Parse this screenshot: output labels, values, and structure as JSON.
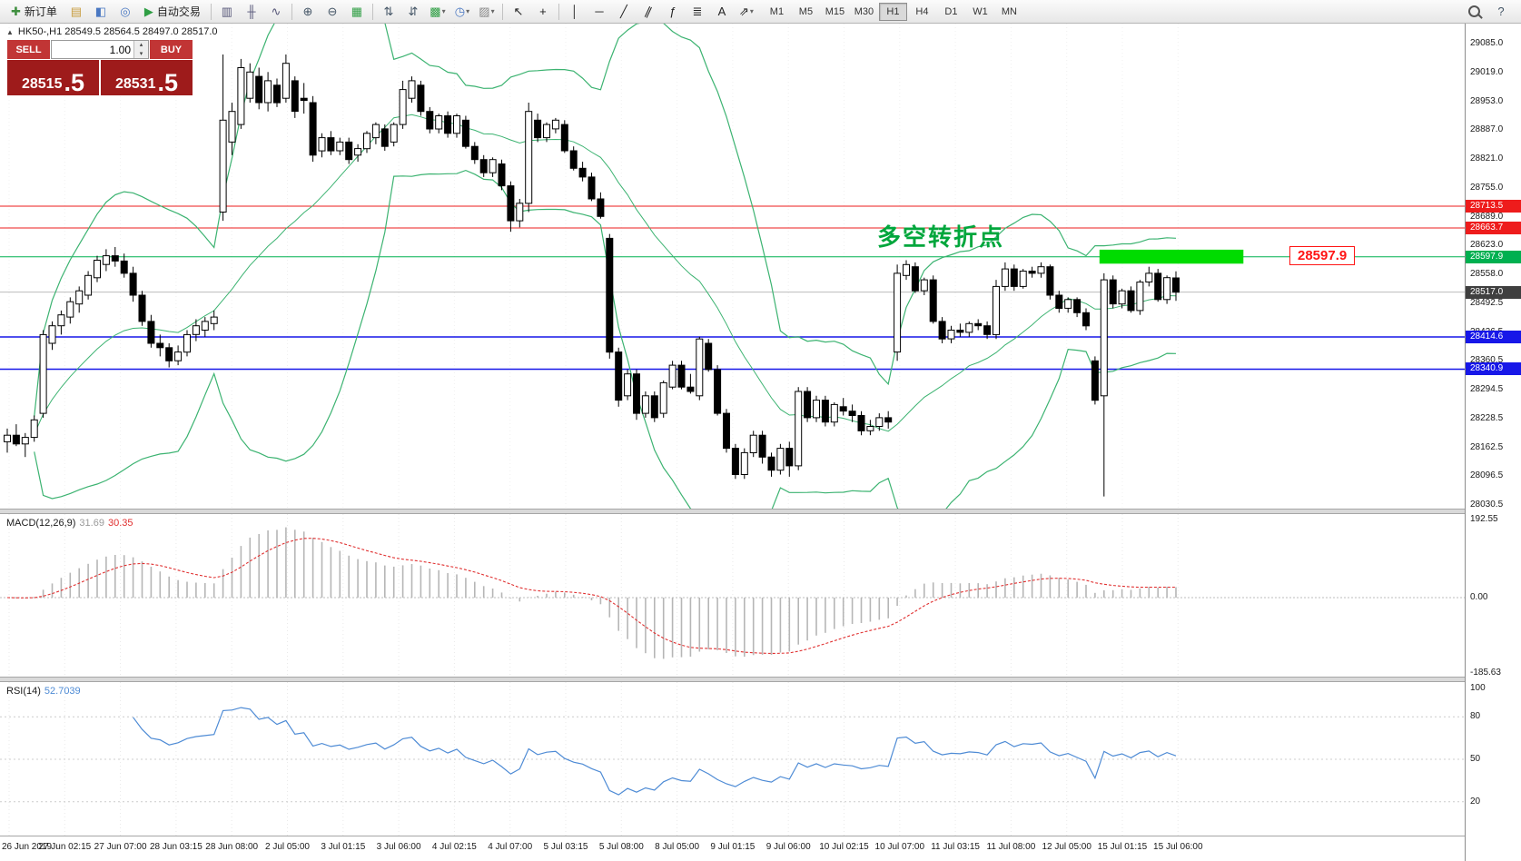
{
  "toolbar": {
    "items": [
      {
        "name": "new-order-button",
        "label": "新订单",
        "glyph": "✚",
        "glyph_color": "#3f8f3f"
      },
      {
        "name": "market-watch-icon",
        "glyph": "▤",
        "glyph_color": "#c79a3a"
      },
      {
        "name": "data-window-icon",
        "glyph": "◧",
        "glyph_color": "#4a78c2"
      },
      {
        "name": "navigator-icon",
        "glyph": "◎",
        "glyph_color": "#4a78c2"
      },
      {
        "name": "autotrading-button",
        "label": "自动交易",
        "glyph": "▶",
        "glyph_color": "#2f9e44"
      },
      {
        "sep": true
      },
      {
        "name": "bar-chart-icon",
        "glyph": "▥",
        "glyph_color": "#555577"
      },
      {
        "name": "candlestick-chart-icon",
        "glyph": "╫",
        "glyph_color": "#555577"
      },
      {
        "name": "line-chart-icon",
        "glyph": "∿",
        "glyph_color": "#555577"
      },
      {
        "sep": true
      },
      {
        "name": "zoom-in-icon",
        "glyph": "⊕",
        "glyph_color": "#445566"
      },
      {
        "name": "zoom-out-icon",
        "glyph": "⊖",
        "glyph_color": "#445566"
      },
      {
        "name": "tile-windows-icon",
        "glyph": "▦",
        "glyph_color": "#2f9e44"
      },
      {
        "sep": true
      },
      {
        "name": "sort-ascending-icon",
        "glyph": "⇅",
        "glyph_color": "#445566"
      },
      {
        "name": "sort-descending-icon",
        "glyph": "⇵",
        "glyph_color": "#445566"
      },
      {
        "name": "new-chart-dropdown",
        "glyph": "▩",
        "glyph_color": "#2f9e44",
        "caret": true
      },
      {
        "name": "period-dropdown",
        "glyph": "◷",
        "glyph_color": "#4a78c2",
        "caret": true
      },
      {
        "name": "template-dropdown",
        "glyph": "▨",
        "glyph_color": "#888888",
        "caret": true
      },
      {
        "sep": true
      },
      {
        "name": "cursor-icon",
        "glyph": "↖",
        "glyph_color": "#222222"
      },
      {
        "name": "crosshair-icon",
        "glyph": "+",
        "glyph_color": "#222222"
      },
      {
        "sep": true
      },
      {
        "name": "vertical-line-icon",
        "glyph": "│",
        "glyph_color": "#222222"
      },
      {
        "name": "horizontal-line-icon",
        "glyph": "─",
        "glyph_color": "#222222"
      },
      {
        "name": "trendline-icon",
        "glyph": "╱",
        "glyph_color": "#222222"
      },
      {
        "name": "channel-icon",
        "glyph": "∥",
        "glyph_color": "#222222",
        "rot": 25
      },
      {
        "name": "fibonacci-icon",
        "glyph": "ƒ",
        "glyph_color": "#222222"
      },
      {
        "name": "shapes-icon",
        "glyph": "≣",
        "glyph_color": "#222222"
      },
      {
        "name": "text-label-icon",
        "glyph": "A",
        "glyph_color": "#222222"
      },
      {
        "name": "arrows-icon",
        "glyph": "⇗",
        "glyph_color": "#222222",
        "caret": true
      }
    ],
    "timeframes": [
      {
        "label": "M1"
      },
      {
        "label": "M5"
      },
      {
        "label": "M15"
      },
      {
        "label": "M30"
      },
      {
        "label": "H1",
        "active": true
      },
      {
        "label": "H4"
      },
      {
        "label": "D1"
      },
      {
        "label": "W1"
      },
      {
        "label": "MN"
      }
    ],
    "right_items": [
      {
        "name": "search-icon",
        "type": "magnifier"
      },
      {
        "name": "help-icon",
        "glyph": "?"
      }
    ]
  },
  "chart_header": {
    "collapse_glyph": "▲",
    "text": "HK50-,H1 28549.5 28564.5 28497.0 28517.0"
  },
  "trade_panel": {
    "sell_label": "SELL",
    "buy_label": "BUY",
    "volume": "1.00",
    "spin_up_glyph": "▴",
    "spin_down_glyph": "▾",
    "sell_price_main": "28515",
    "sell_price_frac": ".5",
    "buy_price_main": "28531",
    "buy_price_frac": ".5",
    "button_color": "#c13535",
    "price_bg_color": "#9e1b1b"
  },
  "chart_data": {
    "type": "candlestick",
    "symbol": "HK50-",
    "timeframe": "H1",
    "last_ohlc": {
      "open": 28549.5,
      "high": 28564.5,
      "low": 28497.0,
      "close": 28517.0
    },
    "y_axis_labels": [
      "29085.0",
      "29019.0",
      "28953.0",
      "28887.0",
      "28821.0",
      "28755.0",
      "28689.0",
      "28623.0",
      "28558.0",
      "28492.5",
      "28426.5",
      "28360.5",
      "28294.5",
      "28228.5",
      "28162.5",
      "28096.5",
      "28030.5"
    ],
    "x_axis_labels": [
      "26 Jun 2019",
      "27 Jun 02:15",
      "27 Jun 07:00",
      "28 Jun 03:15",
      "28 Jun 08:00",
      "2 Jul 05:00",
      "3 Jul 01:15",
      "3 Jul 06:00",
      "4 Jul 02:15",
      "4 Jul 07:00",
      "5 Jul 03:15",
      "5 Jul 08:00",
      "8 Jul 05:00",
      "9 Jul 01:15",
      "9 Jul 06:00",
      "10 Jul 02:15",
      "10 Jul 07:00",
      "11 Jul 03:15",
      "11 Jul 08:00",
      "12 Jul 05:00",
      "15 Jul 01:15",
      "15 Jul 06:00"
    ],
    "candles_ohlc": [
      [
        28175,
        28205,
        28150,
        28190
      ],
      [
        28190,
        28215,
        28165,
        28170
      ],
      [
        28170,
        28195,
        28140,
        28185
      ],
      [
        28185,
        28235,
        28175,
        28225
      ],
      [
        28240,
        28430,
        28230,
        28420
      ],
      [
        28400,
        28450,
        28385,
        28440
      ],
      [
        28440,
        28475,
        28420,
        28465
      ],
      [
        28460,
        28505,
        28445,
        28495
      ],
      [
        28490,
        28530,
        28470,
        28520
      ],
      [
        28510,
        28565,
        28500,
        28555
      ],
      [
        28550,
        28600,
        28540,
        28590
      ],
      [
        28580,
        28615,
        28565,
        28600
      ],
      [
        28600,
        28620,
        28575,
        28588
      ],
      [
        28588,
        28605,
        28550,
        28560
      ],
      [
        28560,
        28575,
        28495,
        28510
      ],
      [
        28510,
        28520,
        28440,
        28450
      ],
      [
        28450,
        28465,
        28390,
        28400
      ],
      [
        28400,
        28420,
        28370,
        28390
      ],
      [
        28390,
        28400,
        28345,
        28360
      ],
      [
        28360,
        28395,
        28350,
        28380
      ],
      [
        28380,
        28430,
        28370,
        28420
      ],
      [
        28420,
        28455,
        28405,
        28440
      ],
      [
        28430,
        28460,
        28415,
        28450
      ],
      [
        28445,
        28475,
        28430,
        28460
      ],
      [
        28700,
        29060,
        28680,
        28910
      ],
      [
        28860,
        28950,
        28830,
        28930
      ],
      [
        28900,
        29050,
        28890,
        29030
      ],
      [
        28960,
        29040,
        28950,
        29020
      ],
      [
        29010,
        29030,
        28935,
        28950
      ],
      [
        28950,
        29020,
        28930,
        29000
      ],
      [
        28990,
        29005,
        28940,
        28950
      ],
      [
        28960,
        29060,
        28950,
        29040
      ],
      [
        29000,
        29010,
        28915,
        28930
      ],
      [
        28960,
        28995,
        28925,
        28955
      ],
      [
        28950,
        28965,
        28815,
        28830
      ],
      [
        28840,
        28880,
        28825,
        28870
      ],
      [
        28870,
        28885,
        28830,
        28840
      ],
      [
        28840,
        28870,
        28830,
        28860
      ],
      [
        28860,
        28870,
        28810,
        28820
      ],
      [
        28830,
        28855,
        28815,
        28845
      ],
      [
        28845,
        28885,
        28835,
        28880
      ],
      [
        28870,
        28905,
        28855,
        28900
      ],
      [
        28890,
        28900,
        28840,
        28850
      ],
      [
        28860,
        28905,
        28850,
        28900
      ],
      [
        28900,
        29000,
        28890,
        28980
      ],
      [
        28960,
        29010,
        28950,
        29000
      ],
      [
        28990,
        29000,
        28920,
        28930
      ],
      [
        28930,
        28940,
        28880,
        28890
      ],
      [
        28890,
        28925,
        28880,
        28920
      ],
      [
        28920,
        28930,
        28870,
        28880
      ],
      [
        28880,
        28925,
        28870,
        28920
      ],
      [
        28910,
        28920,
        28845,
        28850
      ],
      [
        28850,
        28860,
        28810,
        28820
      ],
      [
        28820,
        28830,
        28780,
        28790
      ],
      [
        28790,
        28825,
        28780,
        28820
      ],
      [
        28810,
        28820,
        28750,
        28760
      ],
      [
        28760,
        28770,
        28655,
        28680
      ],
      [
        28680,
        28730,
        28665,
        28720
      ],
      [
        28720,
        28950,
        28700,
        28930
      ],
      [
        28910,
        28925,
        28860,
        28870
      ],
      [
        28870,
        28905,
        28860,
        28900
      ],
      [
        28890,
        28915,
        28880,
        28910
      ],
      [
        28900,
        28910,
        28835,
        28840
      ],
      [
        28840,
        28850,
        28795,
        28800
      ],
      [
        28800,
        28815,
        28770,
        28780
      ],
      [
        28780,
        28790,
        28725,
        28730
      ],
      [
        28730,
        28745,
        28685,
        28690
      ],
      [
        28640,
        28650,
        28365,
        28380
      ],
      [
        28380,
        28390,
        28255,
        28270
      ],
      [
        28280,
        28340,
        28270,
        28330
      ],
      [
        28330,
        28340,
        28225,
        28240
      ],
      [
        28240,
        28290,
        28230,
        28280
      ],
      [
        28280,
        28290,
        28220,
        28230
      ],
      [
        28240,
        28315,
        28230,
        28310
      ],
      [
        28300,
        28360,
        28295,
        28350
      ],
      [
        28350,
        28360,
        28295,
        28300
      ],
      [
        28300,
        28330,
        28285,
        28290
      ],
      [
        28280,
        28415,
        28270,
        28410
      ],
      [
        28400,
        28410,
        28335,
        28340
      ],
      [
        28340,
        28350,
        28235,
        28240
      ],
      [
        28240,
        28250,
        28150,
        28160
      ],
      [
        28160,
        28170,
        28090,
        28100
      ],
      [
        28100,
        28160,
        28090,
        28150
      ],
      [
        28150,
        28200,
        28140,
        28190
      ],
      [
        28190,
        28200,
        28125,
        28140
      ],
      [
        28140,
        28150,
        28095,
        28110
      ],
      [
        28110,
        28170,
        28100,
        28160
      ],
      [
        28160,
        28175,
        28095,
        28120
      ],
      [
        28120,
        28300,
        28110,
        28290
      ],
      [
        28290,
        28300,
        28220,
        28230
      ],
      [
        28230,
        28280,
        28220,
        28270
      ],
      [
        28270,
        28280,
        28210,
        28220
      ],
      [
        28220,
        28265,
        28210,
        28260
      ],
      [
        28255,
        28275,
        28235,
        28245
      ],
      [
        28245,
        28260,
        28220,
        28235
      ],
      [
        28235,
        28245,
        28190,
        28200
      ],
      [
        28200,
        28225,
        28190,
        28210
      ],
      [
        28210,
        28240,
        28200,
        28230
      ],
      [
        28230,
        28245,
        28205,
        28220
      ],
      [
        28380,
        28580,
        28360,
        28560
      ],
      [
        28555,
        28590,
        28545,
        28580
      ],
      [
        28575,
        28585,
        28515,
        28520
      ],
      [
        28520,
        28550,
        28510,
        28545
      ],
      [
        28545,
        28555,
        28445,
        28450
      ],
      [
        28450,
        28460,
        28400,
        28410
      ],
      [
        28410,
        28440,
        28400,
        28430
      ],
      [
        28430,
        28445,
        28415,
        28425
      ],
      [
        28425,
        28450,
        28415,
        28445
      ],
      [
        28445,
        28455,
        28430,
        28440
      ],
      [
        28440,
        28450,
        28410,
        28420
      ],
      [
        28420,
        28545,
        28410,
        28530
      ],
      [
        28530,
        28585,
        28520,
        28570
      ],
      [
        28570,
        28580,
        28520,
        28530
      ],
      [
        28530,
        28570,
        28525,
        28565
      ],
      [
        28565,
        28575,
        28550,
        28560
      ],
      [
        28560,
        28585,
        28550,
        28575
      ],
      [
        28575,
        28580,
        28500,
        28510
      ],
      [
        28510,
        28520,
        28470,
        28480
      ],
      [
        28480,
        28505,
        28470,
        28500
      ],
      [
        28500,
        28505,
        28460,
        28470
      ],
      [
        28470,
        28480,
        28430,
        28440
      ],
      [
        28360,
        28370,
        28260,
        28270
      ],
      [
        28280,
        28560,
        28050,
        28545
      ],
      [
        28545,
        28555,
        28480,
        28490
      ],
      [
        28490,
        28525,
        28480,
        28520
      ],
      [
        28520,
        28530,
        28470,
        28475
      ],
      [
        28475,
        28545,
        28465,
        28540
      ],
      [
        28540,
        28575,
        28530,
        28560
      ],
      [
        28560,
        28570,
        28495,
        28500
      ],
      [
        28500,
        28555,
        28490,
        28550
      ],
      [
        28549.5,
        28564.5,
        28497.0,
        28517.0
      ]
    ],
    "overlays": {
      "bollinger": {
        "period": 20,
        "deviation": 2,
        "color": "#3cb371"
      },
      "horizontal_lines": [
        {
          "price": 28713.5,
          "label": "28713.5",
          "color": "#ee1c1c",
          "width": 1
        },
        {
          "price": 28663.7,
          "label": "28663.7",
          "color": "#ee1c1c",
          "width": 1
        },
        {
          "price": 28597.9,
          "label": "28597.9",
          "color": "#00b050",
          "width": 1
        },
        {
          "price": 28414.6,
          "label": "28414.6",
          "color": "#1717e8",
          "width": 1.5
        },
        {
          "price": 28340.9,
          "label": "28340.9",
          "color": "#1717e8",
          "width": 1.5
        }
      ],
      "current_price_line": {
        "price": 28517.0,
        "label": "28517.0",
        "line_color": "#bcbcbc",
        "tag_color": "#3f3f3f"
      },
      "highlight_rect": {
        "from_index": 122,
        "to_index": 137,
        "price_top": 28614,
        "price_bottom": 28582,
        "color": "#00dc00"
      },
      "price_callout": {
        "text": "28597.9",
        "price": 28597.9,
        "color": "#ff1414"
      },
      "text_annotation": {
        "text": "多空转折点",
        "color": "#00a63c"
      }
    },
    "macd": {
      "title": "MACD(12,26,9)",
      "value_main": "31.69",
      "value_signal": "30.35",
      "axis_labels": [
        "192.55",
        "0.00",
        "-185.63"
      ],
      "axis_values": [
        192.55,
        0,
        -185.63
      ],
      "hist_color": "#b6b6b6",
      "signal_color": "#e03030"
    },
    "rsi": {
      "title": "RSI(14)",
      "value": "52.7039",
      "axis_labels": [
        "100",
        "80",
        "50",
        "20"
      ],
      "axis_values": [
        100,
        80,
        50,
        20
      ],
      "level_values": [
        80,
        50,
        20
      ],
      "line_color": "#4e8bd5"
    }
  }
}
